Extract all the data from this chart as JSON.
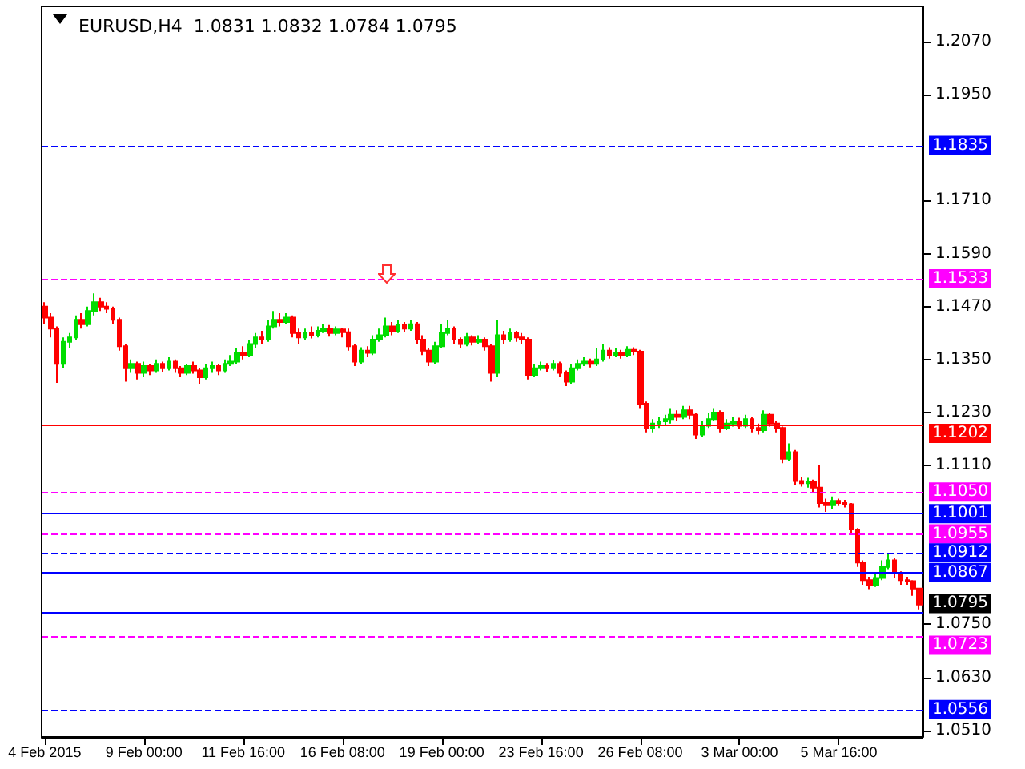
{
  "chart_data": {
    "type": "candlestick",
    "title": "EURUSD,H4  1.0831 1.0832 1.0784 1.0795",
    "categories": [
      "4 Feb 2015",
      null,
      null,
      null,
      null,
      null,
      null,
      null,
      null,
      null,
      null,
      null,
      null,
      null,
      null,
      null,
      "9 Feb 00:00",
      null,
      null,
      null,
      null,
      null,
      null,
      null,
      null,
      null,
      null,
      null,
      null,
      null,
      null,
      null,
      "11 Feb 16:00",
      null,
      null,
      null,
      null,
      null,
      null,
      null,
      null,
      null,
      null,
      null,
      null,
      null,
      null,
      null,
      "16 Feb 08:00",
      null,
      null,
      null,
      null,
      null,
      null,
      null,
      null,
      null,
      null,
      null,
      null,
      null,
      null,
      null,
      "19 Feb 00:00",
      null,
      null,
      null,
      null,
      null,
      null,
      null,
      null,
      null,
      null,
      null,
      null,
      null,
      null,
      null,
      "23 Feb 16:00",
      null,
      null,
      null,
      null,
      null,
      null,
      null,
      null,
      null,
      null,
      null,
      null,
      null,
      null,
      null,
      "26 Feb 08:00",
      null,
      null,
      null,
      null,
      null,
      null,
      null,
      null,
      null,
      null,
      null,
      null,
      null,
      null,
      null,
      "3 Mar 00:00",
      null,
      null,
      null,
      null,
      null,
      null,
      null,
      null,
      null,
      null,
      null,
      null,
      null,
      null,
      null,
      "5 Mar 16:00",
      null,
      null,
      null,
      null,
      null,
      null,
      null,
      null,
      null,
      null,
      null,
      null,
      null
    ],
    "ohlc": [
      [
        1.147,
        1.148,
        1.143,
        1.1445
      ],
      [
        1.1445,
        1.1455,
        1.14,
        1.142
      ],
      [
        1.142,
        1.1425,
        1.1297,
        1.134
      ],
      [
        1.134,
        1.14,
        1.133,
        1.139
      ],
      [
        1.139,
        1.141,
        1.1375,
        1.14
      ],
      [
        1.14,
        1.145,
        1.1395,
        1.144
      ],
      [
        1.144,
        1.1455,
        1.142,
        1.143
      ],
      [
        1.143,
        1.147,
        1.1425,
        1.146
      ],
      [
        1.146,
        1.15,
        1.145,
        1.148
      ],
      [
        1.148,
        1.149,
        1.146,
        1.147
      ],
      [
        1.147,
        1.148,
        1.1455,
        1.1465
      ],
      [
        1.1465,
        1.147,
        1.143,
        1.144
      ],
      [
        1.144,
        1.1445,
        1.137,
        1.138
      ],
      [
        1.138,
        1.1385,
        1.13,
        1.133
      ],
      [
        1.133,
        1.135,
        1.132,
        1.134
      ],
      [
        1.134,
        1.1345,
        1.1305,
        1.132
      ],
      [
        1.132,
        1.1345,
        1.131,
        1.1335
      ],
      [
        1.1335,
        1.134,
        1.1315,
        1.1325
      ],
      [
        1.1325,
        1.135,
        1.132,
        1.134
      ],
      [
        1.134,
        1.1345,
        1.1322,
        1.133
      ],
      [
        1.133,
        1.1355,
        1.1325,
        1.1345
      ],
      [
        1.1345,
        1.135,
        1.132,
        1.133
      ],
      [
        1.133,
        1.1335,
        1.131,
        1.132
      ],
      [
        1.132,
        1.134,
        1.1315,
        1.1335
      ],
      [
        1.1335,
        1.1345,
        1.1318,
        1.1325
      ],
      [
        1.1325,
        1.133,
        1.1295,
        1.131
      ],
      [
        1.131,
        1.134,
        1.1305,
        1.133
      ],
      [
        1.133,
        1.1345,
        1.132,
        1.1335
      ],
      [
        1.1335,
        1.134,
        1.1315,
        1.1325
      ],
      [
        1.1325,
        1.135,
        1.132,
        1.134
      ],
      [
        1.134,
        1.136,
        1.1335,
        1.1345
      ],
      [
        1.1345,
        1.1375,
        1.134,
        1.1365
      ],
      [
        1.1365,
        1.138,
        1.135,
        1.136
      ],
      [
        1.136,
        1.1395,
        1.1355,
        1.1385
      ],
      [
        1.1385,
        1.141,
        1.1375,
        1.14
      ],
      [
        1.14,
        1.1415,
        1.1385,
        1.1395
      ],
      [
        1.1395,
        1.144,
        1.139,
        1.1425
      ],
      [
        1.1425,
        1.146,
        1.142,
        1.144
      ],
      [
        1.144,
        1.1455,
        1.1425,
        1.1435
      ],
      [
        1.1435,
        1.1455,
        1.143,
        1.1445
      ],
      [
        1.1445,
        1.145,
        1.14,
        1.141
      ],
      [
        1.141,
        1.142,
        1.1385,
        1.14
      ],
      [
        1.14,
        1.142,
        1.1395,
        1.141
      ],
      [
        1.141,
        1.1425,
        1.1398,
        1.1405
      ],
      [
        1.1405,
        1.1425,
        1.14,
        1.1415
      ],
      [
        1.1415,
        1.143,
        1.141,
        1.142
      ],
      [
        1.142,
        1.1428,
        1.1402,
        1.141
      ],
      [
        1.141,
        1.1425,
        1.1405,
        1.1418
      ],
      [
        1.1418,
        1.1422,
        1.14,
        1.1412
      ],
      [
        1.1412,
        1.142,
        1.137,
        1.138
      ],
      [
        1.138,
        1.1385,
        1.1335,
        1.1345
      ],
      [
        1.1345,
        1.1378,
        1.134,
        1.137
      ],
      [
        1.137,
        1.138,
        1.1355,
        1.1365
      ],
      [
        1.1365,
        1.1405,
        1.136,
        1.1395
      ],
      [
        1.1395,
        1.142,
        1.139,
        1.1405
      ],
      [
        1.1405,
        1.1445,
        1.14,
        1.1425
      ],
      [
        1.1425,
        1.1435,
        1.1405,
        1.1415
      ],
      [
        1.1415,
        1.144,
        1.141,
        1.1428
      ],
      [
        1.1428,
        1.1435,
        1.1412,
        1.142
      ],
      [
        1.142,
        1.144,
        1.1415,
        1.143
      ],
      [
        1.143,
        1.1435,
        1.1385,
        1.1395
      ],
      [
        1.1395,
        1.1405,
        1.136,
        1.137
      ],
      [
        1.137,
        1.1375,
        1.1335,
        1.1345
      ],
      [
        1.1345,
        1.139,
        1.134,
        1.138
      ],
      [
        1.138,
        1.143,
        1.1375,
        1.141
      ],
      [
        1.141,
        1.144,
        1.1405,
        1.142
      ],
      [
        1.142,
        1.1425,
        1.1385,
        1.1395
      ],
      [
        1.1395,
        1.14,
        1.1375,
        1.1385
      ],
      [
        1.1385,
        1.141,
        1.138,
        1.14
      ],
      [
        1.14,
        1.1405,
        1.1382,
        1.139
      ],
      [
        1.139,
        1.1405,
        1.1385,
        1.1395
      ],
      [
        1.1395,
        1.14,
        1.137,
        1.138
      ],
      [
        1.138,
        1.1385,
        1.13,
        1.132
      ],
      [
        1.132,
        1.144,
        1.131,
        1.1405
      ],
      [
        1.1405,
        1.1415,
        1.1385,
        1.1395
      ],
      [
        1.1395,
        1.142,
        1.139,
        1.141
      ],
      [
        1.141,
        1.1415,
        1.139,
        1.14
      ],
      [
        1.14,
        1.141,
        1.1385,
        1.1395
      ],
      [
        1.1395,
        1.14,
        1.1305,
        1.1315
      ],
      [
        1.1315,
        1.134,
        1.131,
        1.133
      ],
      [
        1.133,
        1.1345,
        1.1325,
        1.1335
      ],
      [
        1.1335,
        1.1342,
        1.1322,
        1.133
      ],
      [
        1.133,
        1.1348,
        1.1325,
        1.134
      ],
      [
        1.134,
        1.1345,
        1.131,
        1.132
      ],
      [
        1.132,
        1.1325,
        1.129,
        1.13
      ],
      [
        1.13,
        1.134,
        1.1295,
        1.133
      ],
      [
        1.133,
        1.135,
        1.1325,
        1.134
      ],
      [
        1.134,
        1.1355,
        1.1335,
        1.1345
      ],
      [
        1.1345,
        1.1352,
        1.1332,
        1.134
      ],
      [
        1.134,
        1.1375,
        1.1335,
        1.135
      ],
      [
        1.135,
        1.1385,
        1.1345,
        1.137
      ],
      [
        1.137,
        1.1378,
        1.1352,
        1.136
      ],
      [
        1.136,
        1.1375,
        1.1355,
        1.1365
      ],
      [
        1.1365,
        1.1372,
        1.1352,
        1.136
      ],
      [
        1.136,
        1.138,
        1.1355,
        1.1372
      ],
      [
        1.1372,
        1.1378,
        1.136,
        1.1368
      ],
      [
        1.1368,
        1.1372,
        1.124,
        1.125
      ],
      [
        1.125,
        1.1255,
        1.1185,
        1.1195
      ],
      [
        1.1195,
        1.1215,
        1.1185,
        1.1205
      ],
      [
        1.1205,
        1.122,
        1.1195,
        1.121
      ],
      [
        1.121,
        1.1225,
        1.12,
        1.1215
      ],
      [
        1.1215,
        1.124,
        1.1205,
        1.1225
      ],
      [
        1.1225,
        1.1235,
        1.121,
        1.122
      ],
      [
        1.122,
        1.1245,
        1.1215,
        1.1235
      ],
      [
        1.1235,
        1.1245,
        1.1215,
        1.1225
      ],
      [
        1.1225,
        1.123,
        1.117,
        1.118
      ],
      [
        1.118,
        1.121,
        1.1175,
        1.12
      ],
      [
        1.12,
        1.123,
        1.1195,
        1.1215
      ],
      [
        1.1215,
        1.124,
        1.121,
        1.123
      ],
      [
        1.123,
        1.1235,
        1.1185,
        1.1195
      ],
      [
        1.1195,
        1.1215,
        1.119,
        1.1205
      ],
      [
        1.1205,
        1.122,
        1.1198,
        1.121
      ],
      [
        1.121,
        1.1218,
        1.1192,
        1.12
      ],
      [
        1.12,
        1.1225,
        1.1195,
        1.1215
      ],
      [
        1.1215,
        1.122,
        1.1185,
        1.1195
      ],
      [
        1.1195,
        1.1205,
        1.118,
        1.119
      ],
      [
        1.119,
        1.1235,
        1.1185,
        1.1225
      ],
      [
        1.1225,
        1.123,
        1.1198,
        1.1205
      ],
      [
        1.1205,
        1.1212,
        1.1185,
        1.1195
      ],
      [
        1.1195,
        1.1198,
        1.1115,
        1.1125
      ],
      [
        1.1125,
        1.116,
        1.112,
        1.114
      ],
      [
        1.114,
        1.1145,
        1.1065,
        1.1075
      ],
      [
        1.1075,
        1.1085,
        1.1062,
        1.107
      ],
      [
        1.107,
        1.1082,
        1.106,
        1.1072
      ],
      [
        1.1072,
        1.1078,
        1.105,
        1.106
      ],
      [
        1.106,
        1.1112,
        1.1015,
        1.1025
      ],
      [
        1.1025,
        1.1035,
        1.1005,
        1.102
      ],
      [
        1.102,
        1.104,
        1.1012,
        1.103
      ],
      [
        1.103,
        1.1035,
        1.1018,
        1.1025
      ],
      [
        1.1025,
        1.1032,
        1.1015,
        1.1022
      ],
      [
        1.1022,
        1.1025,
        1.0955,
        1.0965
      ],
      [
        1.0965,
        1.0968,
        1.088,
        1.089
      ],
      [
        1.089,
        1.0895,
        1.084,
        1.085
      ],
      [
        1.085,
        1.0858,
        1.083,
        1.084
      ],
      [
        1.084,
        1.0865,
        1.0835,
        1.0855
      ],
      [
        1.0855,
        1.0895,
        1.085,
        1.088
      ],
      [
        1.088,
        1.091,
        1.0875,
        1.0895
      ],
      [
        1.0895,
        1.09,
        1.0855,
        1.0865
      ],
      [
        1.0865,
        1.087,
        1.084,
        1.085
      ],
      [
        1.085,
        1.0858,
        1.084,
        1.0848
      ],
      [
        1.0848,
        1.085,
        1.0815,
        1.0831
      ],
      [
        1.0831,
        1.0832,
        1.0784,
        1.0795
      ]
    ],
    "colors": [
      "#ff0000",
      "#ff0000",
      "#ff0000",
      "#00dd00",
      "#00dd00",
      "#00dd00",
      "#ff0000",
      "#00dd00",
      "#00dd00",
      "#ff0000",
      "#ff0000",
      "#ff0000",
      "#ff0000",
      "#ff0000",
      "#00dd00",
      "#ff0000",
      "#00dd00",
      "#ff0000",
      "#00dd00",
      "#ff0000",
      "#00dd00",
      "#ff0000",
      "#ff0000",
      "#00dd00",
      "#ff0000",
      "#ff0000",
      "#00dd00",
      "#00dd00",
      "#ff0000",
      "#00dd00",
      "#00dd00",
      "#00dd00",
      "#ff0000",
      "#00dd00",
      "#00dd00",
      "#ff0000",
      "#00dd00",
      "#00dd00",
      "#ff0000",
      "#00dd00",
      "#ff0000",
      "#ff0000",
      "#00dd00",
      "#ff0000",
      "#00dd00",
      "#00dd00",
      "#ff0000",
      "#00dd00",
      "#ff0000",
      "#ff0000",
      "#ff0000",
      "#00dd00",
      "#ff0000",
      "#00dd00",
      "#00dd00",
      "#00dd00",
      "#ff0000",
      "#00dd00",
      "#ff0000",
      "#00dd00",
      "#ff0000",
      "#ff0000",
      "#ff0000",
      "#00dd00",
      "#00dd00",
      "#00dd00",
      "#ff0000",
      "#ff0000",
      "#00dd00",
      "#ff0000",
      "#00dd00",
      "#ff0000",
      "#ff0000",
      "#00dd00",
      "#ff0000",
      "#00dd00",
      "#ff0000",
      "#ff0000",
      "#ff0000",
      "#00dd00",
      "#00dd00",
      "#ff0000",
      "#00dd00",
      "#ff0000",
      "#ff0000",
      "#00dd00",
      "#00dd00",
      "#00dd00",
      "#ff0000",
      "#00dd00",
      "#00dd00",
      "#ff0000",
      "#00dd00",
      "#ff0000",
      "#00dd00",
      "#ff0000",
      "#ff0000",
      "#ff0000",
      "#00dd00",
      "#00dd00",
      "#00dd00",
      "#00dd00",
      "#ff0000",
      "#00dd00",
      "#ff0000",
      "#ff0000",
      "#00dd00",
      "#00dd00",
      "#00dd00",
      "#ff0000",
      "#00dd00",
      "#00dd00",
      "#ff0000",
      "#00dd00",
      "#ff0000",
      "#ff0000",
      "#00dd00",
      "#ff0000",
      "#ff0000",
      "#ff0000",
      "#00dd00",
      "#ff0000",
      "#ff0000",
      "#00dd00",
      "#ff0000",
      "#ff0000",
      "#ff0000",
      "#00dd00",
      "#ff0000",
      "#ff0000",
      "#ff0000",
      "#ff0000",
      "#ff0000",
      "#ff0000",
      "#00dd00",
      "#00dd00",
      "#00dd00",
      "#ff0000",
      "#ff0000",
      "#ff0000",
      "#ff0000",
      "#ff0000"
    ],
    "ylim": [
      1.0495,
      1.215
    ],
    "yticks": [
      {
        "value": 1.207,
        "label": "1.2070"
      },
      {
        "value": 1.195,
        "label": "1.1950"
      },
      {
        "value": 1.171,
        "label": "1.1710"
      },
      {
        "value": 1.159,
        "label": "1.1590"
      },
      {
        "value": 1.147,
        "label": "1.1470"
      },
      {
        "value": 1.135,
        "label": "1.1350"
      },
      {
        "value": 1.123,
        "label": "1.1230"
      },
      {
        "value": 1.111,
        "label": "1.1110"
      },
      {
        "value": 1.075,
        "label": "1.0750"
      },
      {
        "value": 1.063,
        "label": "1.0630"
      },
      {
        "value": 1.051,
        "label": "1.0510"
      }
    ],
    "ref_lines": [
      {
        "axis": "y",
        "value": 1.1835,
        "label": "1.1835",
        "color": "#0000ff",
        "line_style": "dashed"
      },
      {
        "axis": "y",
        "value": 1.1533,
        "label": "1.1533",
        "color": "#ff00ff",
        "line_style": "dashed"
      },
      {
        "axis": "y",
        "value": 1.1202,
        "label": "1.1202",
        "color": "#ff0000",
        "line_style": "solid"
      },
      {
        "axis": "y",
        "value": 1.105,
        "label": "1.1050",
        "color": "#ff00ff",
        "line_style": "dashed"
      },
      {
        "axis": "y",
        "value": 1.1001,
        "label": "1.1001",
        "color": "#0000ff",
        "line_style": "solid"
      },
      {
        "axis": "y",
        "value": 1.0955,
        "label": "1.0955",
        "color": "#ff00ff",
        "line_style": "dashed"
      },
      {
        "axis": "y",
        "value": 1.0912,
        "label": "1.0912",
        "color": "#0000ff",
        "line_style": "dashed"
      },
      {
        "axis": "y",
        "value": 1.0867,
        "label": "1.0867",
        "color": "#0000ff",
        "line_style": "solid"
      },
      {
        "axis": "y",
        "value": 1.0778,
        "label": null,
        "color": "#0000ff",
        "line_style": "solid"
      },
      {
        "axis": "y",
        "value": 1.0723,
        "label": "1.0723",
        "color": "#ff00ff",
        "line_style": "dashed"
      },
      {
        "axis": "y",
        "value": 1.0556,
        "label": "1.0556",
        "color": "#0000ff",
        "line_style": "dashed"
      }
    ],
    "annotations": [
      "1.0795"
    ]
  }
}
